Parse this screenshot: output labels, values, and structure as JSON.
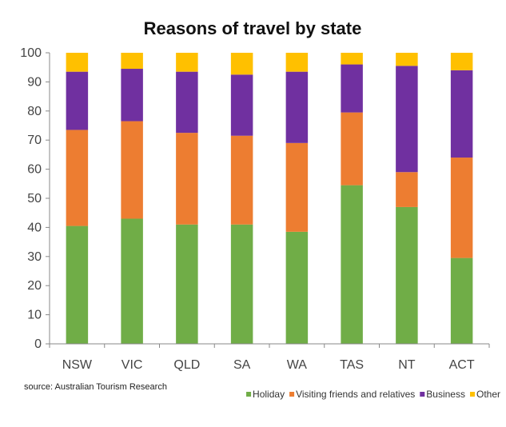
{
  "chart_data": {
    "type": "bar",
    "stacked": true,
    "title": "Reasons of travel by state",
    "xlabel": "",
    "ylabel": "",
    "ylim": [
      0,
      100
    ],
    "yticks": [
      0,
      10,
      20,
      30,
      40,
      50,
      60,
      70,
      80,
      90,
      100
    ],
    "grid": false,
    "legend_position": "bottom-right",
    "categories": [
      "NSW",
      "VIC",
      "QLD",
      "SA",
      "WA",
      "TAS",
      "NT",
      "ACT"
    ],
    "series": [
      {
        "name": "Holiday",
        "color": "#70ad47",
        "values": [
          40.5,
          43.0,
          41.0,
          41.0,
          38.5,
          54.5,
          47.0,
          29.5
        ]
      },
      {
        "name": "Visiting friends and relatives",
        "color": "#ed7d31",
        "values": [
          33.0,
          33.5,
          31.5,
          30.5,
          30.5,
          25.0,
          12.0,
          34.5
        ]
      },
      {
        "name": "Business",
        "color": "#7030a0",
        "values": [
          20.0,
          18.0,
          21.0,
          21.0,
          24.5,
          16.5,
          36.5,
          30.0
        ]
      },
      {
        "name": "Other",
        "color": "#ffc000",
        "values": [
          6.5,
          5.5,
          6.5,
          7.5,
          6.5,
          4.0,
          4.5,
          6.0
        ]
      }
    ],
    "source": "source:  Australian Tourism Research"
  }
}
